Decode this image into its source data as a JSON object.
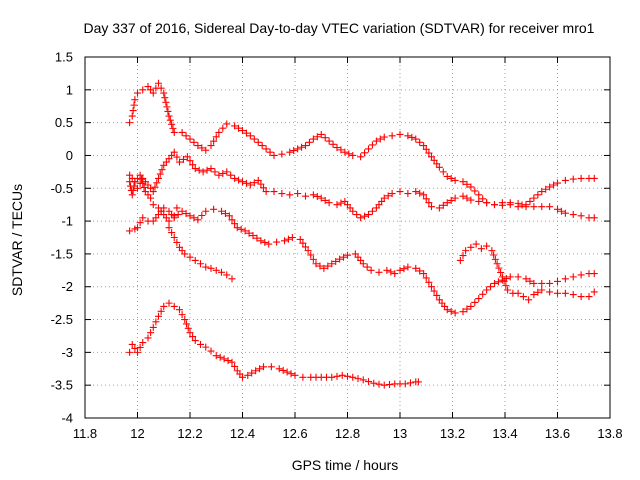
{
  "chart_data": {
    "type": "scatter",
    "title": "Day 337 of 2016, Sidereal Day-to-day VTEC variation (SDTVAR) for receiver mro1",
    "xlabel": "GPS time / hours",
    "ylabel": "SDTVAR / TECUs",
    "xlim": [
      11.8,
      13.8
    ],
    "ylim": [
      -4,
      1.5
    ],
    "xticks": [
      11.8,
      12,
      12.2,
      12.4,
      12.6,
      12.8,
      13,
      13.2,
      13.4,
      13.6,
      13.8
    ],
    "xtick_labels": [
      "11.8",
      "12",
      "12.2",
      "12.4",
      "12.6",
      "12.8",
      "13",
      "13.2",
      "13.4",
      "13.6",
      "13.8"
    ],
    "yticks": [
      1.5,
      1,
      0.5,
      0,
      -0.5,
      -1,
      -1.5,
      -2,
      -2.5,
      -3,
      -3.5,
      -4
    ],
    "ytick_labels": [
      "1.5",
      "1",
      "0.5",
      "0",
      "-0.5",
      "-1",
      "-1.5",
      "-2",
      "-2.5",
      "-3",
      "-3.5",
      "-4"
    ],
    "grid": true,
    "legend": "none",
    "marker": "+",
    "color": "#ff0000",
    "series": [
      {
        "name": "s1",
        "points": [
          [
            11.97,
            0.5
          ],
          [
            11.98,
            0.6
          ],
          [
            11.99,
            0.85
          ],
          [
            12.0,
            0.95
          ],
          [
            12.02,
            1.0
          ],
          [
            12.04,
            1.05
          ],
          [
            12.06,
            0.95
          ],
          [
            12.08,
            1.1
          ],
          [
            12.1,
            0.95
          ],
          [
            12.12,
            0.6
          ],
          [
            12.14,
            0.35
          ],
          [
            12.17,
            0.35
          ],
          [
            12.2,
            0.25
          ],
          [
            12.23,
            0.15
          ],
          [
            12.26,
            0.08
          ],
          [
            12.28,
            0.15
          ],
          [
            12.31,
            0.35
          ],
          [
            12.34,
            0.48
          ],
          [
            12.37,
            0.45
          ],
          [
            12.4,
            0.38
          ],
          [
            12.43,
            0.3
          ],
          [
            12.46,
            0.2
          ],
          [
            12.49,
            0.1
          ],
          [
            12.52,
            0.0
          ],
          [
            12.55,
            0.02
          ],
          [
            12.58,
            0.05
          ],
          [
            12.61,
            0.1
          ],
          [
            12.64,
            0.15
          ],
          [
            12.67,
            0.25
          ],
          [
            12.7,
            0.32
          ],
          [
            12.73,
            0.22
          ],
          [
            12.76,
            0.12
          ],
          [
            12.79,
            0.05
          ],
          [
            12.82,
            0.0
          ],
          [
            12.85,
            -0.02
          ],
          [
            12.88,
            0.1
          ],
          [
            12.91,
            0.22
          ],
          [
            12.94,
            0.28
          ],
          [
            12.97,
            0.3
          ],
          [
            13.0,
            0.32
          ],
          [
            13.03,
            0.3
          ],
          [
            13.06,
            0.25
          ],
          [
            13.09,
            0.15
          ],
          [
            13.12,
            -0.02
          ],
          [
            13.15,
            -0.18
          ],
          [
            13.18,
            -0.32
          ],
          [
            13.21,
            -0.38
          ],
          [
            13.24,
            -0.4
          ],
          [
            13.27,
            -0.48
          ],
          [
            13.3,
            -0.6
          ],
          [
            13.33,
            -0.72
          ],
          [
            13.36,
            -0.75
          ],
          [
            13.39,
            -0.72
          ],
          [
            13.42,
            -0.75
          ],
          [
            13.45,
            -0.78
          ],
          [
            13.48,
            -0.75
          ],
          [
            13.51,
            -0.65
          ],
          [
            13.54,
            -0.55
          ],
          [
            13.57,
            -0.48
          ],
          [
            13.6,
            -0.42
          ],
          [
            13.63,
            -0.38
          ],
          [
            13.66,
            -0.36
          ],
          [
            13.69,
            -0.35
          ],
          [
            13.72,
            -0.35
          ],
          [
            13.74,
            -0.35
          ]
        ]
      },
      {
        "name": "s2",
        "points": [
          [
            11.97,
            -0.3
          ],
          [
            11.99,
            -0.4
          ],
          [
            12.0,
            -0.5
          ],
          [
            12.02,
            -0.35
          ],
          [
            12.04,
            -0.45
          ],
          [
            12.06,
            -0.55
          ],
          [
            12.08,
            -0.35
          ],
          [
            12.1,
            -0.15
          ],
          [
            12.12,
            -0.05
          ],
          [
            12.14,
            0.05
          ],
          [
            12.16,
            -0.1
          ],
          [
            12.19,
            -0.02
          ],
          [
            12.22,
            -0.2
          ],
          [
            12.25,
            -0.25
          ],
          [
            12.28,
            -0.2
          ],
          [
            12.31,
            -0.3
          ],
          [
            12.34,
            -0.25
          ],
          [
            12.37,
            -0.35
          ],
          [
            12.4,
            -0.4
          ],
          [
            12.43,
            -0.45
          ],
          [
            12.46,
            -0.38
          ],
          [
            12.49,
            -0.55
          ],
          [
            12.52,
            -0.55
          ],
          [
            12.55,
            -0.58
          ],
          [
            12.58,
            -0.6
          ],
          [
            12.61,
            -0.58
          ],
          [
            12.64,
            -0.62
          ],
          [
            12.67,
            -0.6
          ],
          [
            12.7,
            -0.65
          ],
          [
            12.73,
            -0.72
          ],
          [
            12.76,
            -0.75
          ],
          [
            12.79,
            -0.7
          ],
          [
            12.82,
            -0.85
          ],
          [
            12.85,
            -0.95
          ],
          [
            12.88,
            -0.9
          ],
          [
            12.91,
            -0.8
          ],
          [
            12.94,
            -0.65
          ],
          [
            12.97,
            -0.58
          ],
          [
            13.0,
            -0.55
          ],
          [
            13.03,
            -0.58
          ],
          [
            13.06,
            -0.55
          ],
          [
            13.09,
            -0.6
          ],
          [
            13.12,
            -0.78
          ],
          [
            13.15,
            -0.8
          ],
          [
            13.18,
            -0.72
          ],
          [
            13.21,
            -0.65
          ],
          [
            13.24,
            -0.62
          ],
          [
            13.27,
            -0.68
          ],
          [
            13.3,
            -0.7
          ],
          [
            13.33,
            -0.72
          ],
          [
            13.36,
            -0.75
          ],
          [
            13.39,
            -0.76
          ],
          [
            13.42,
            -0.72
          ],
          [
            13.45,
            -0.73
          ],
          [
            13.48,
            -0.78
          ],
          [
            13.51,
            -0.78
          ],
          [
            13.54,
            -0.78
          ],
          [
            13.57,
            -0.78
          ],
          [
            13.6,
            -0.82
          ],
          [
            13.63,
            -0.88
          ],
          [
            13.66,
            -0.9
          ],
          [
            13.69,
            -0.92
          ],
          [
            13.72,
            -0.95
          ],
          [
            13.74,
            -0.95
          ]
        ]
      },
      {
        "name": "s3",
        "points": [
          [
            11.97,
            -0.4
          ],
          [
            11.98,
            -0.6
          ],
          [
            11.99,
            -0.4
          ],
          [
            12.01,
            -0.3
          ],
          [
            12.03,
            -0.55
          ],
          [
            12.05,
            -0.65
          ],
          [
            12.06,
            -0.75
          ],
          [
            12.08,
            -0.8
          ],
          [
            12.1,
            -0.9
          ],
          [
            12.12,
            -1.0
          ],
          [
            12.14,
            -0.92
          ],
          [
            12.15,
            -0.8
          ]
        ]
      },
      {
        "name": "s4",
        "points": [
          [
            11.97,
            -1.15
          ],
          [
            11.99,
            -1.12
          ],
          [
            12.0,
            -1.1
          ],
          [
            12.02,
            -0.95
          ],
          [
            12.04,
            -1.0
          ],
          [
            12.06,
            -1.0
          ],
          [
            12.08,
            -0.9
          ],
          [
            12.1,
            -0.8
          ],
          [
            12.12,
            -0.85
          ],
          [
            12.14,
            -0.95
          ],
          [
            12.17,
            -0.85
          ],
          [
            12.2,
            -0.92
          ],
          [
            12.23,
            -0.98
          ],
          [
            12.26,
            -0.85
          ],
          [
            12.29,
            -0.82
          ],
          [
            12.32,
            -0.85
          ],
          [
            12.35,
            -0.92
          ],
          [
            12.38,
            -1.1
          ],
          [
            12.41,
            -1.15
          ],
          [
            12.44,
            -1.22
          ],
          [
            12.47,
            -1.3
          ],
          [
            12.5,
            -1.35
          ],
          [
            12.53,
            -1.32
          ],
          [
            12.56,
            -1.3
          ],
          [
            12.59,
            -1.25
          ],
          [
            12.62,
            -1.28
          ],
          [
            12.65,
            -1.45
          ],
          [
            12.68,
            -1.65
          ],
          [
            12.71,
            -1.72
          ],
          [
            12.74,
            -1.65
          ],
          [
            12.77,
            -1.58
          ],
          [
            12.8,
            -1.52
          ],
          [
            12.83,
            -1.5
          ],
          [
            12.86,
            -1.65
          ],
          [
            12.89,
            -1.75
          ],
          [
            12.92,
            -1.78
          ],
          [
            12.95,
            -1.75
          ],
          [
            12.98,
            -1.8
          ],
          [
            13.0,
            -1.75
          ],
          [
            13.03,
            -1.7
          ],
          [
            13.06,
            -1.72
          ],
          [
            13.09,
            -1.8
          ],
          [
            13.12,
            -2.0
          ],
          [
            13.15,
            -2.2
          ],
          [
            13.18,
            -2.35
          ],
          [
            13.21,
            -2.4
          ],
          [
            13.24,
            -2.38
          ],
          [
            13.27,
            -2.3
          ],
          [
            13.3,
            -2.18
          ],
          [
            13.33,
            -2.05
          ],
          [
            13.36,
            -1.95
          ],
          [
            13.39,
            -1.9
          ],
          [
            13.42,
            -1.85
          ],
          [
            13.45,
            -1.85
          ],
          [
            13.48,
            -1.88
          ],
          [
            13.51,
            -1.95
          ],
          [
            13.54,
            -1.95
          ],
          [
            13.57,
            -1.95
          ],
          [
            13.6,
            -1.92
          ],
          [
            13.63,
            -1.88
          ],
          [
            13.66,
            -1.85
          ],
          [
            13.69,
            -1.82
          ],
          [
            13.72,
            -1.8
          ],
          [
            13.74,
            -1.8
          ]
        ]
      },
      {
        "name": "s5",
        "points": [
          [
            12.12,
            -1.1
          ],
          [
            12.14,
            -1.25
          ],
          [
            12.16,
            -1.4
          ],
          [
            12.18,
            -1.5
          ],
          [
            12.2,
            -1.55
          ],
          [
            12.22,
            -1.6
          ],
          [
            12.24,
            -1.65
          ],
          [
            12.26,
            -1.7
          ],
          [
            12.28,
            -1.72
          ],
          [
            12.3,
            -1.75
          ],
          [
            12.32,
            -1.78
          ],
          [
            12.34,
            -1.82
          ],
          [
            12.36,
            -1.88
          ]
        ]
      },
      {
        "name": "s6",
        "points": [
          [
            13.23,
            -1.6
          ],
          [
            13.25,
            -1.45
          ],
          [
            13.27,
            -1.4
          ],
          [
            13.29,
            -1.35
          ],
          [
            13.31,
            -1.42
          ],
          [
            13.33,
            -1.38
          ],
          [
            13.35,
            -1.45
          ],
          [
            13.37,
            -1.65
          ],
          [
            13.39,
            -1.85
          ],
          [
            13.41,
            -2.05
          ],
          [
            13.43,
            -2.1
          ],
          [
            13.45,
            -2.1
          ],
          [
            13.47,
            -2.15
          ],
          [
            13.49,
            -2.2
          ],
          [
            13.51,
            -2.12
          ],
          [
            13.54,
            -2.05
          ],
          [
            13.57,
            -2.08
          ],
          [
            13.6,
            -2.1
          ],
          [
            13.63,
            -2.1
          ],
          [
            13.66,
            -2.12
          ],
          [
            13.69,
            -2.15
          ],
          [
            13.72,
            -2.15
          ],
          [
            13.74,
            -2.08
          ]
        ]
      },
      {
        "name": "s7",
        "points": [
          [
            11.97,
            -3.0
          ],
          [
            11.98,
            -2.88
          ],
          [
            12.0,
            -3.0
          ],
          [
            12.02,
            -2.85
          ],
          [
            12.04,
            -2.78
          ],
          [
            12.06,
            -2.62
          ],
          [
            12.08,
            -2.45
          ],
          [
            12.1,
            -2.3
          ],
          [
            12.12,
            -2.25
          ],
          [
            12.14,
            -2.3
          ],
          [
            12.16,
            -2.35
          ],
          [
            12.18,
            -2.5
          ],
          [
            12.2,
            -2.7
          ],
          [
            12.22,
            -2.82
          ],
          [
            12.24,
            -2.88
          ],
          [
            12.26,
            -2.92
          ],
          [
            12.28,
            -2.98
          ],
          [
            12.3,
            -3.05
          ],
          [
            12.33,
            -3.1
          ],
          [
            12.36,
            -3.15
          ],
          [
            12.38,
            -3.28
          ],
          [
            12.4,
            -3.38
          ],
          [
            12.42,
            -3.35
          ],
          [
            12.45,
            -3.28
          ],
          [
            12.48,
            -3.22
          ],
          [
            12.51,
            -3.22
          ],
          [
            12.54,
            -3.25
          ],
          [
            12.57,
            -3.3
          ],
          [
            12.6,
            -3.35
          ],
          [
            12.63,
            -3.38
          ],
          [
            12.66,
            -3.38
          ],
          [
            12.7,
            -3.38
          ],
          [
            12.74,
            -3.38
          ],
          [
            12.78,
            -3.35
          ],
          [
            12.82,
            -3.38
          ],
          [
            12.86,
            -3.42
          ],
          [
            12.9,
            -3.47
          ],
          [
            12.94,
            -3.5
          ],
          [
            12.98,
            -3.48
          ],
          [
            13.02,
            -3.48
          ],
          [
            13.06,
            -3.45
          ],
          [
            13.07,
            -3.45
          ]
        ]
      }
    ]
  }
}
